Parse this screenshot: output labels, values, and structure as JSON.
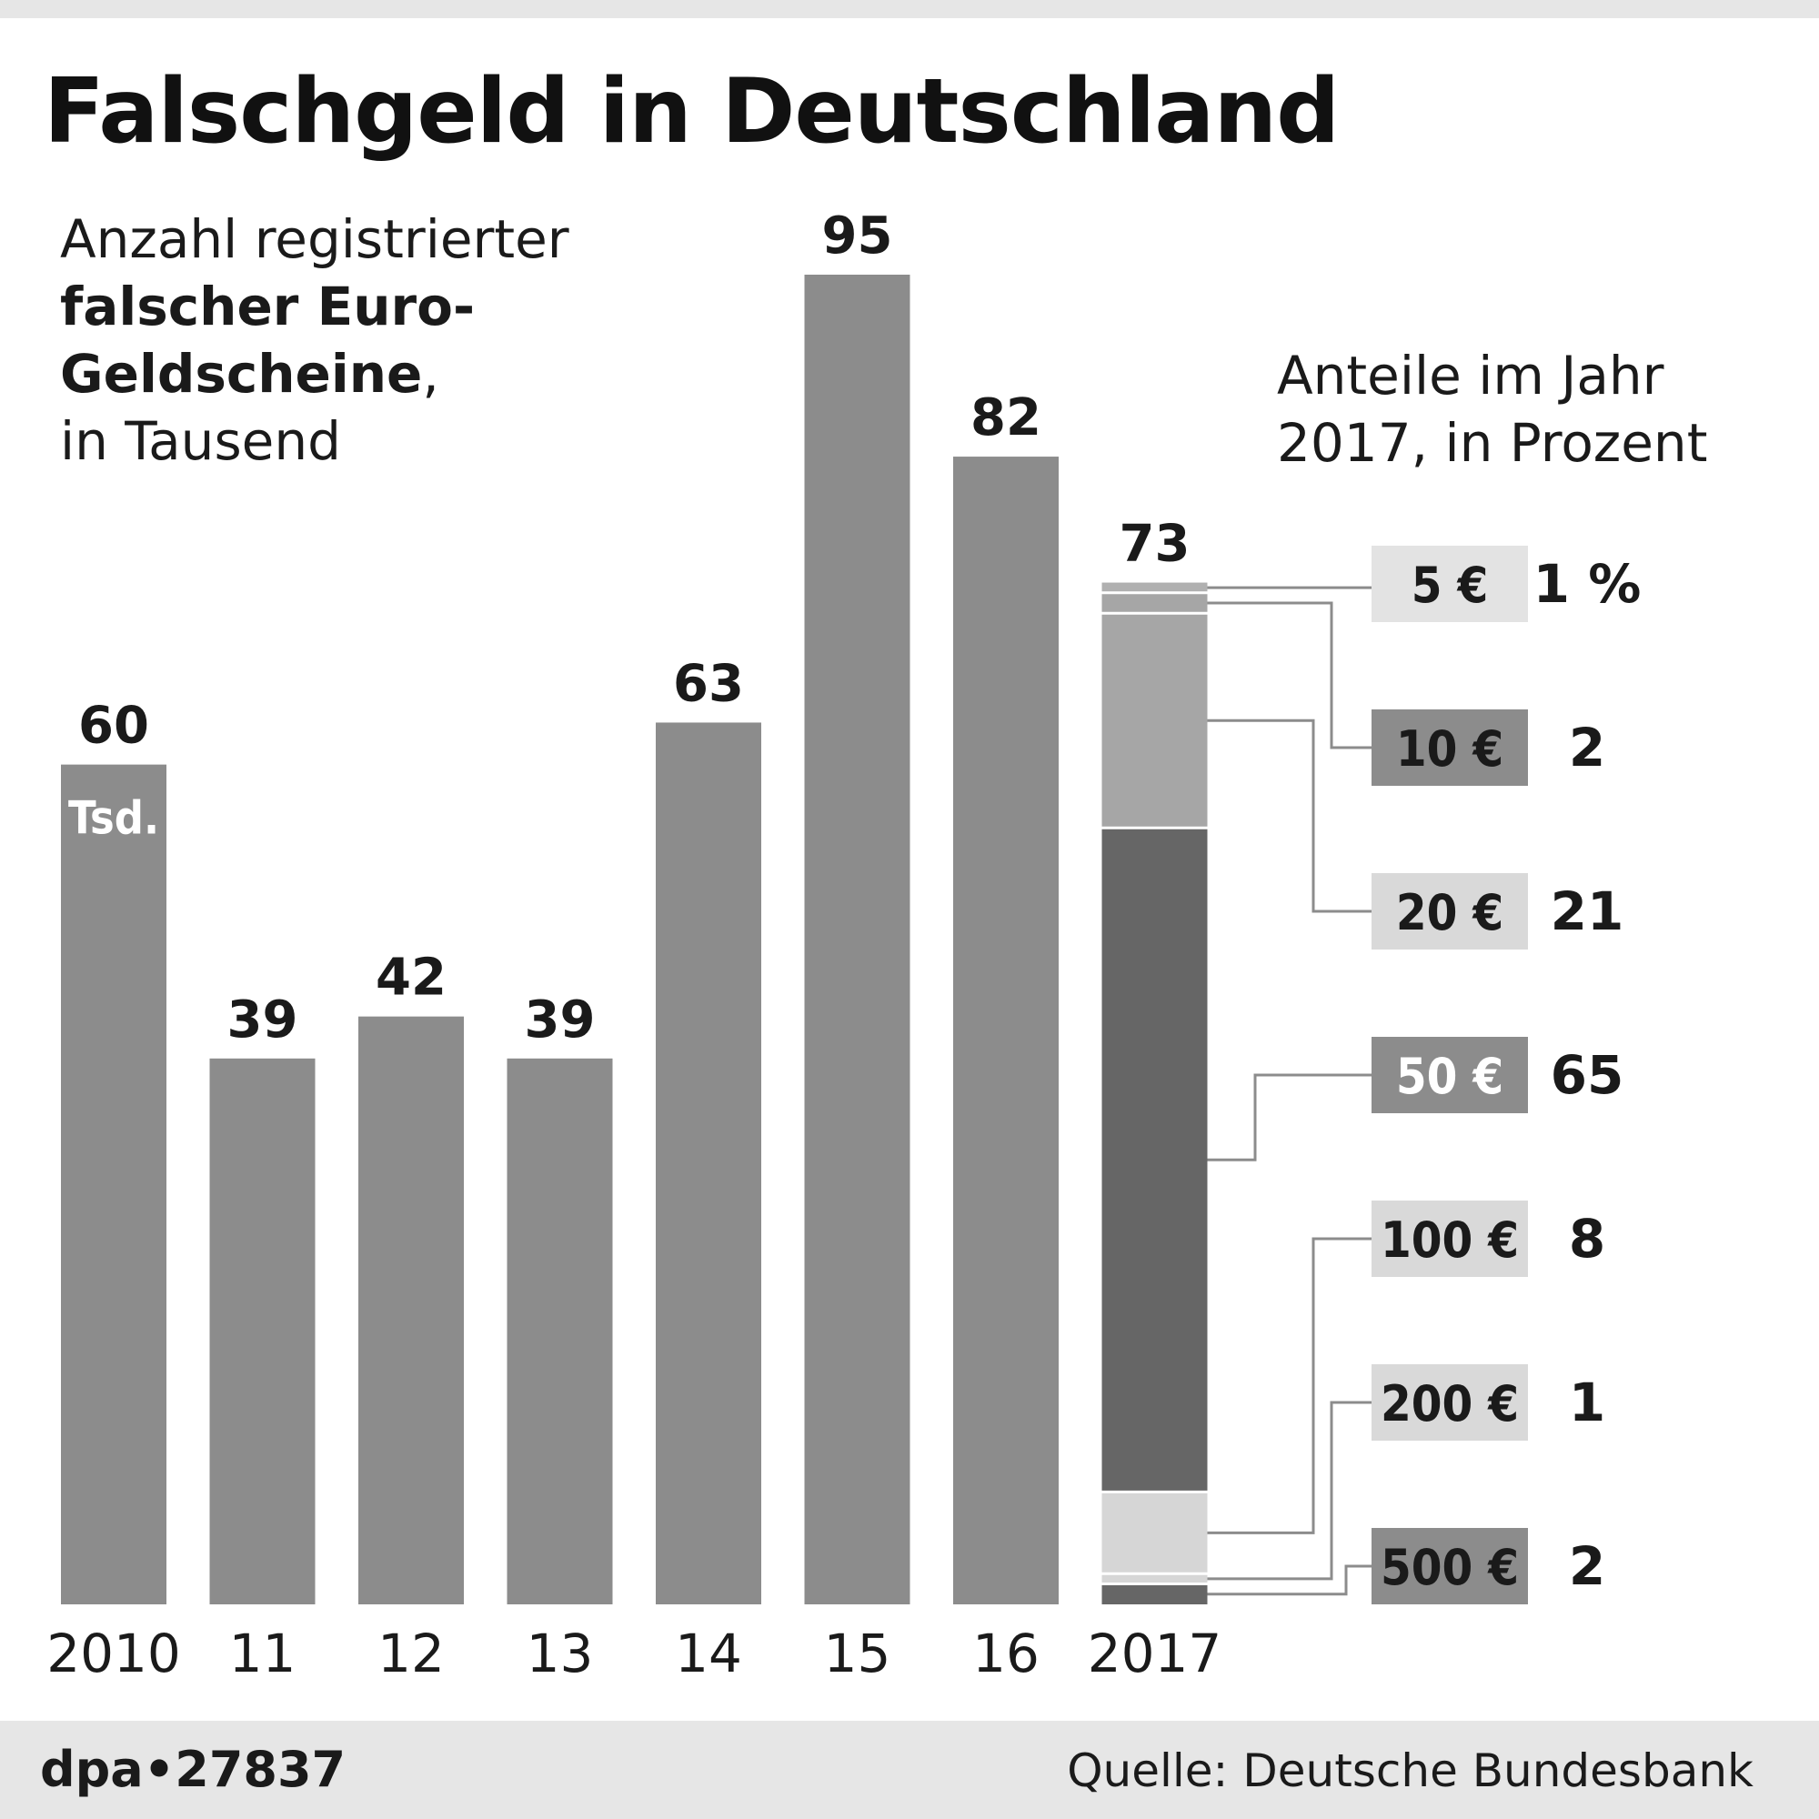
{
  "header": {
    "title": "Falschgeld in Deutschland",
    "subtitle": {
      "line1": "Anzahl registrierter",
      "line2": "falscher Euro-",
      "line3": "Geldscheine",
      "line3_tail": ",",
      "line4": "in Tausend"
    },
    "shares_title": {
      "line1": "Anteile im Jahr",
      "line2": "2017, in Prozent"
    }
  },
  "chart_data": [
    {
      "type": "bar",
      "categories": [
        "2010",
        "11",
        "12",
        "13",
        "14",
        "15",
        "16",
        "2017"
      ],
      "values": [
        60,
        39,
        42,
        39,
        63,
        95,
        82,
        73
      ],
      "value_labels": [
        "60",
        "39",
        "42",
        "39",
        "63",
        "95",
        "82",
        "73"
      ],
      "unit_label": "Tsd.",
      "bar_color": "#8c8c8c",
      "ylim": [
        0,
        95
      ]
    },
    {
      "type": "bar",
      "stacked": true,
      "category": "2017",
      "denominations": [
        "5 €",
        "10 €",
        "20 €",
        "50 €",
        "100 €",
        "200 €",
        "500 €"
      ],
      "percent_labels": [
        "1 %",
        "2",
        "21",
        "65",
        "8",
        "1",
        "2"
      ],
      "percent": [
        1,
        2,
        21,
        65,
        8,
        1,
        2
      ],
      "segment_colors": [
        "#b0b0b0",
        "#a6a6a6",
        "#a6a6a6",
        "#666666",
        "#d6d6d6",
        "#d6d6d6",
        "#666666"
      ],
      "label_box_colors": [
        "#e3e3e3",
        "#8c8c8c",
        "#d9d9d9",
        "#8c8c8c",
        "#d9d9d9",
        "#d9d9d9",
        "#8c8c8c"
      ],
      "label_text_colors": [
        "#1a1a1a",
        "#1a1a1a",
        "#1a1a1a",
        "#ffffff",
        "#1a1a1a",
        "#1a1a1a",
        "#1a1a1a"
      ]
    }
  ],
  "footer": {
    "id": "dpa•27837",
    "source": "Quelle: Deutsche Bundesbank"
  }
}
